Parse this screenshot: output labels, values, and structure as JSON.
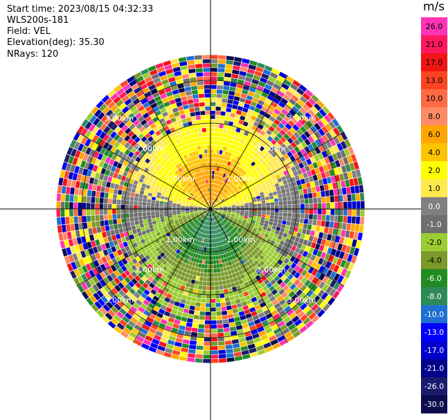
{
  "header": {
    "start_time": "Start time: 2023/08/15 04:32:33",
    "instrument": "WLS200s-181",
    "field": "Field: VEL",
    "elevation": "Elevation(deg): 35.30",
    "nrays": "NRays: 120"
  },
  "colorbar": {
    "unit": "m/s",
    "ticks": [
      "26.0",
      "21.0",
      "17.0",
      "13.0",
      "10.0",
      "8.0",
      "6.0",
      "4.0",
      "2.0",
      "1.0",
      "0.0",
      "-1.0",
      "-2.0",
      "-4.0",
      "-6.0",
      "-8.0",
      "-10.0",
      "-13.0",
      "-17.0",
      "-21.0",
      "-26.0",
      "-30.0"
    ],
    "colors": [
      "#ff33b5",
      "#ff1a5e",
      "#f01515",
      "#ff4422",
      "#ff6a44",
      "#ff8a66",
      "#ffa500",
      "#ffc400",
      "#ffff00",
      "#ffe94d",
      "#808080",
      "#6e6e6e",
      "#9acd32",
      "#7a9a2a",
      "#228b22",
      "#2e8b57",
      "#1e6fd0",
      "#0000ff",
      "#0000cd",
      "#00008b",
      "#1a1a6e",
      "#0b0b4d"
    ]
  },
  "chart_data": {
    "type": "heatmap",
    "projection": "polar PPI",
    "field": "VEL",
    "range_rings_km": [
      1.0,
      2.0,
      3.0
    ],
    "ring_labels": [
      "1.00km",
      "2.00km",
      "3.00km"
    ],
    "max_range_km": 3.6,
    "n_rays": 120,
    "gates_per_ray": 36,
    "spokes_deg": [
      0,
      30,
      60,
      90,
      120,
      150,
      180,
      210,
      240,
      270,
      300,
      330
    ],
    "pattern": {
      "north_sector": "positive velocities 2 to 8 m/s, max ~6-8 m/s near 0.5 km north",
      "south_sector": "negative velocities -1 to -6 m/s, min ~-6 m/s near 0.5 km south",
      "east_west_band": "near zero (grey) band along 90/270 deg",
      "outer_ranges": "noise beyond ~2.5 km (random colours)"
    }
  }
}
